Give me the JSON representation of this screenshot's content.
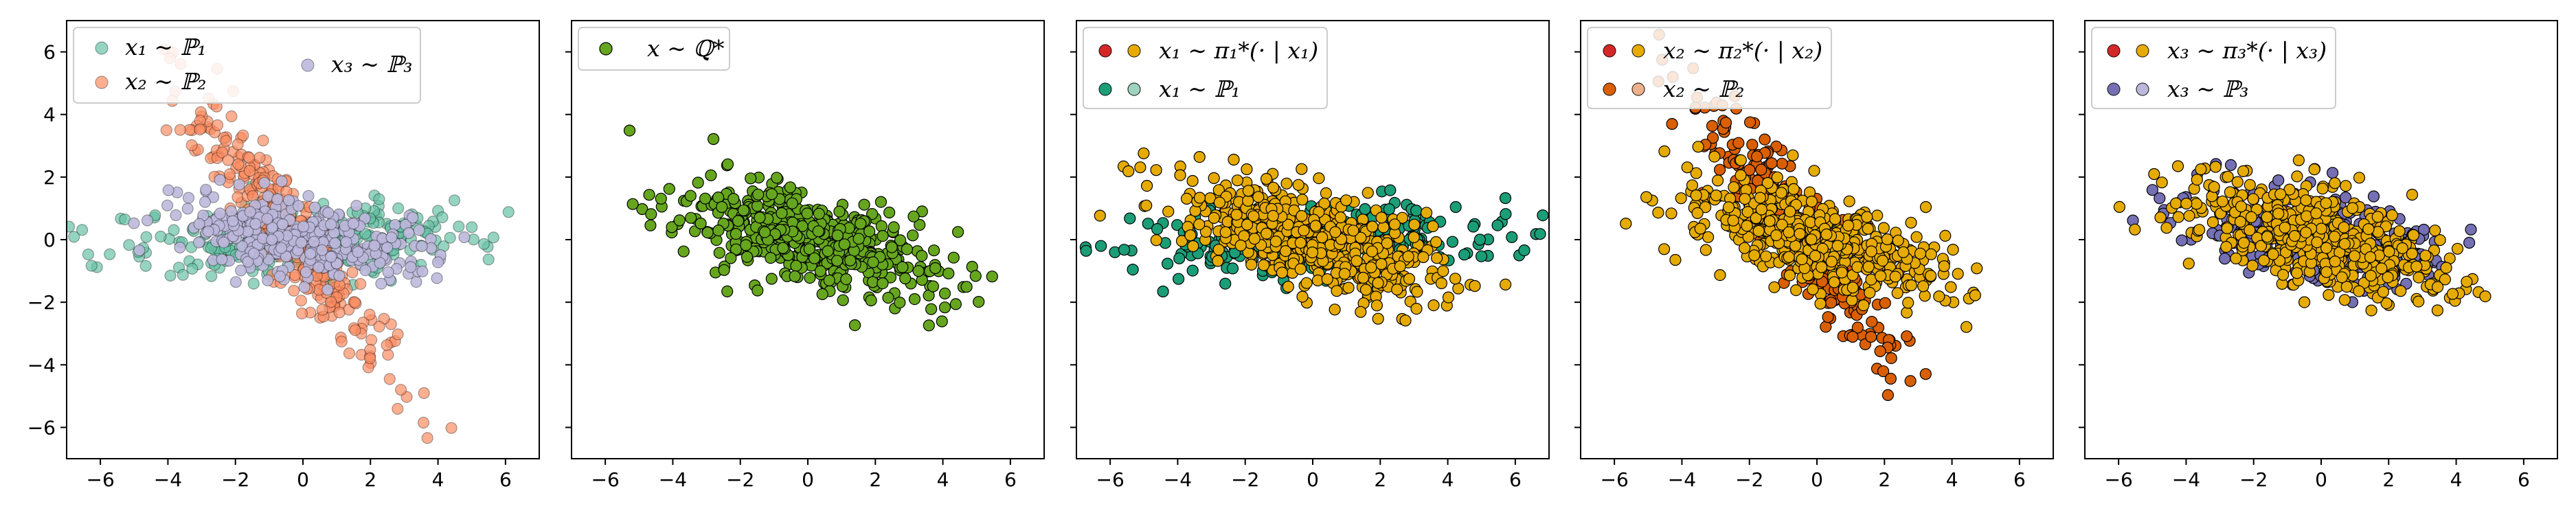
{
  "chart_data": [
    {
      "type": "scatter",
      "title": "",
      "xlabel": "",
      "ylabel": "",
      "xlim": [
        -7,
        7
      ],
      "ylim": [
        -7,
        7
      ],
      "xticks": [
        -6,
        -4,
        -2,
        0,
        2,
        4,
        6
      ],
      "yticks": [
        -6,
        -4,
        -2,
        0,
        2,
        4,
        6
      ],
      "tick_labels_x": [
        "−6",
        "−4",
        "−2",
        "0",
        "2",
        "4",
        "6"
      ],
      "tick_labels_y": [
        "−6",
        "−4",
        "−2",
        "0",
        "2",
        "4",
        "6"
      ],
      "show_y_tick_labels": true,
      "legend_position": "upper-left",
      "legend_columns": 2,
      "series": [
        {
          "name": "x₁ ∼ ℙ₁",
          "color": "#66c2a5",
          "alpha": 0.7,
          "n": 300,
          "mean": [
            0,
            0
          ],
          "cov": [
            [
              7.5,
              0.3
            ],
            [
              0.3,
              0.35
            ]
          ],
          "draw_order": 0
        },
        {
          "name": "x₂ ∼ ℙ₂",
          "color": "#fc8d62",
          "alpha": 0.7,
          "n": 300,
          "mean": [
            -0.4,
            0.2
          ],
          "cov": [
            [
              2.2,
              -2.9
            ],
            [
              -2.9,
              4.5
            ]
          ],
          "draw_order": 1
        },
        {
          "name": "x₃ ∼ ℙ₃",
          "color": "#bcb8dc",
          "alpha": 0.9,
          "n": 340,
          "mean": [
            0,
            0
          ],
          "cov": [
            [
              3.5,
              -0.55
            ],
            [
              -0.55,
              0.5
            ]
          ],
          "draw_order": 2
        }
      ]
    },
    {
      "type": "scatter",
      "title": "",
      "xlabel": "",
      "ylabel": "",
      "xlim": [
        -7,
        7
      ],
      "ylim": [
        -7,
        7
      ],
      "xticks": [
        -6,
        -4,
        -2,
        0,
        2,
        4,
        6
      ],
      "yticks": [
        -6,
        -4,
        -2,
        0,
        2,
        4,
        6
      ],
      "tick_labels_x": [
        "−6",
        "−4",
        "−2",
        "0",
        "2",
        "4",
        "6"
      ],
      "show_y_tick_labels": false,
      "legend_position": "upper-left",
      "series": [
        {
          "name": "x ∼ ℚ*",
          "color": "#66a61e",
          "alpha": 1.0,
          "n": 520,
          "mean": [
            0,
            0
          ],
          "cov": [
            [
              3.6,
              -1.05
            ],
            [
              -1.05,
              0.85
            ]
          ],
          "draw_order": 0
        }
      ]
    },
    {
      "type": "scatter",
      "title": "",
      "xlabel": "",
      "ylabel": "",
      "xlim": [
        -7,
        7
      ],
      "ylim": [
        -7,
        7
      ],
      "xticks": [
        -6,
        -4,
        -2,
        0,
        2,
        4,
        6
      ],
      "yticks": [
        -6,
        -4,
        -2,
        0,
        2,
        4,
        6
      ],
      "tick_labels_x": [
        "−6",
        "−4",
        "−2",
        "0",
        "2",
        "4",
        "6"
      ],
      "show_y_tick_labels": false,
      "legend_position": "upper-left",
      "legend_entries": [
        {
          "label": "x₁ ∼ π₁*(· | x₁)",
          "marker_colors": [
            "#d62728",
            "#e6ab02"
          ]
        },
        {
          "label": "x₁ ∼ ℙ₁",
          "marker_colors": [
            "#1b9e77",
            "#9fd3c0"
          ]
        }
      ],
      "series": [
        {
          "name": "x₁ ∼ ℙ₁",
          "color": "#1b9e77",
          "alpha": 1.0,
          "n": 300,
          "mean": [
            0,
            0
          ],
          "cov": [
            [
              7.5,
              0.3
            ],
            [
              0.3,
              0.35
            ]
          ],
          "draw_order": 0
        },
        {
          "name": "x₁ ∼ π₁*(· | x₁)",
          "color": "#e6ab02",
          "alpha": 1.0,
          "n": 520,
          "mean": [
            0,
            0
          ],
          "cov": [
            [
              3.6,
              -1.05
            ],
            [
              -1.05,
              0.85
            ]
          ],
          "draw_order": 1
        }
      ]
    },
    {
      "type": "scatter",
      "title": "",
      "xlabel": "",
      "ylabel": "",
      "xlim": [
        -7,
        7
      ],
      "ylim": [
        -7,
        7
      ],
      "xticks": [
        -6,
        -4,
        -2,
        0,
        2,
        4,
        6
      ],
      "yticks": [
        -6,
        -4,
        -2,
        0,
        2,
        4,
        6
      ],
      "tick_labels_x": [
        "−6",
        "−4",
        "−2",
        "0",
        "2",
        "4",
        "6"
      ],
      "show_y_tick_labels": false,
      "legend_position": "upper-left",
      "legend_entries": [
        {
          "label": "x₂ ∼ π₂*(· | x₂)",
          "marker_colors": [
            "#d62728",
            "#e6ab02"
          ]
        },
        {
          "label": "x₂ ∼ ℙ₂",
          "marker_colors": [
            "#d95f02",
            "#f0b08a"
          ]
        }
      ],
      "series": [
        {
          "name": "x₂ ∼ ℙ₂",
          "color": "#d95f02",
          "alpha": 1.0,
          "n": 300,
          "mean": [
            -0.4,
            0.2
          ],
          "cov": [
            [
              2.2,
              -2.9
            ],
            [
              -2.9,
              4.5
            ]
          ],
          "draw_order": 0
        },
        {
          "name": "x₂ ∼ π₂*(· | x₂)",
          "color": "#e6ab02",
          "alpha": 1.0,
          "n": 520,
          "mean": [
            0,
            0
          ],
          "cov": [
            [
              3.6,
              -1.05
            ],
            [
              -1.05,
              0.85
            ]
          ],
          "draw_order": 1
        }
      ]
    },
    {
      "type": "scatter",
      "title": "",
      "xlabel": "",
      "ylabel": "",
      "xlim": [
        -7,
        7
      ],
      "ylim": [
        -7,
        7
      ],
      "xticks": [
        -6,
        -4,
        -2,
        0,
        2,
        4,
        6
      ],
      "yticks": [
        -6,
        -4,
        -2,
        0,
        2,
        4,
        6
      ],
      "tick_labels_x": [
        "−6",
        "−4",
        "−2",
        "0",
        "2",
        "4",
        "6"
      ],
      "show_y_tick_labels": false,
      "legend_position": "upper-left",
      "legend_entries": [
        {
          "label": "x₃ ∼ π₃*(· | x₃)",
          "marker_colors": [
            "#d62728",
            "#e6ab02"
          ]
        },
        {
          "label": "x₃ ∼ ℙ₃",
          "marker_colors": [
            "#7570b3",
            "#bcb8dc"
          ]
        }
      ],
      "series": [
        {
          "name": "x₃ ∼ ℙ₃",
          "color": "#7570b3",
          "alpha": 1.0,
          "n": 340,
          "mean": [
            0,
            0
          ],
          "cov": [
            [
              3.5,
              -0.55
            ],
            [
              -0.55,
              0.5
            ]
          ],
          "draw_order": 0
        },
        {
          "name": "x₃ ∼ π₃*(· | x₃)",
          "color": "#e6ab02",
          "alpha": 1.0,
          "n": 520,
          "mean": [
            0,
            0
          ],
          "cov": [
            [
              3.6,
              -1.05
            ],
            [
              -1.05,
              0.85
            ]
          ],
          "draw_order": 1
        }
      ]
    }
  ]
}
